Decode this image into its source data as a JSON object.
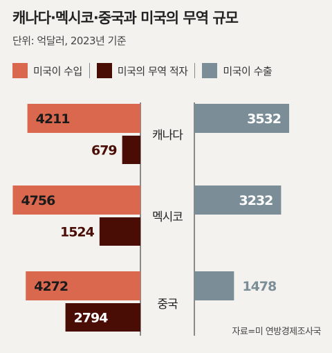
{
  "title": "캐나다·멕시코·중국과 미국의 무역 규모",
  "subtitle": "단위: 억달러, 2023년 기준",
  "source": "자료=미 연방경제조사국",
  "legend": [
    {
      "label": "미국이 수입",
      "color": "#d9684f"
    },
    {
      "label": "미국의 무역 적자",
      "color": "#4a0d06"
    },
    {
      "label": "미국이 수출",
      "color": "#7b8e98"
    }
  ],
  "chart_data": {
    "type": "bar",
    "categories": [
      "캐나다",
      "멕시코",
      "중국"
    ],
    "series": [
      {
        "name": "미국이 수입",
        "values": [
          4211,
          4756,
          4272
        ],
        "color": "#d9684f"
      },
      {
        "name": "미국의 무역 적자",
        "values": [
          679,
          1524,
          2794
        ],
        "color": "#4a0d06"
      },
      {
        "name": "미국이 수출",
        "values": [
          3532,
          3232,
          1478
        ],
        "color": "#7b8e98"
      }
    ],
    "title": "캐나다·멕시코·중국과 미국의 무역 규모",
    "subtitle": "단위: 억달러, 2023년 기준",
    "xlabel": "",
    "ylabel": ""
  }
}
